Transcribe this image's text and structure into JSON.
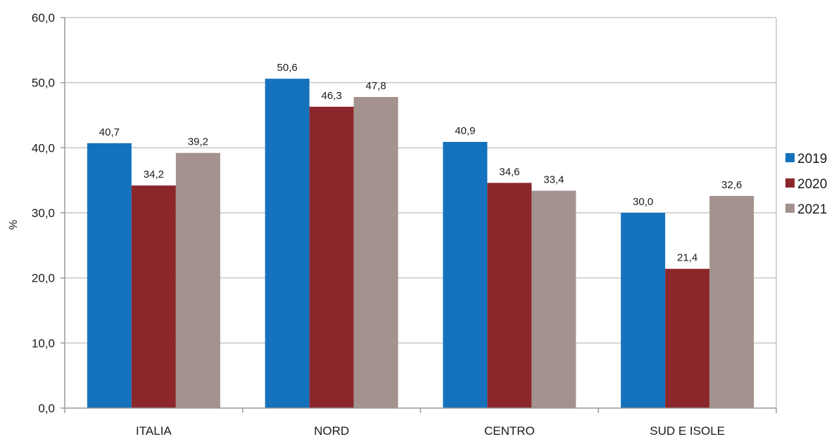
{
  "chart_data": {
    "type": "bar",
    "title": "",
    "xlabel": "",
    "ylabel": "%",
    "ylim": [
      0,
      60
    ],
    "yticks": [
      "0,0",
      "10,0",
      "20,0",
      "30,0",
      "40,0",
      "50,0",
      "60,0"
    ],
    "categories": [
      "ITALIA",
      "NORD",
      "CENTRO",
      "SUD E ISOLE"
    ],
    "series": [
      {
        "name": "2019",
        "color": "#1472bd",
        "values": [
          40.7,
          50.6,
          40.9,
          30.0
        ],
        "labels": [
          "40,7",
          "50,6",
          "40,9",
          "30,0"
        ]
      },
      {
        "name": "2020",
        "color": "#8b272b",
        "values": [
          34.2,
          46.3,
          34.6,
          21.4
        ],
        "labels": [
          "34,2",
          "46,3",
          "34,6",
          "21,4"
        ]
      },
      {
        "name": "2021",
        "color": "#a3928d",
        "values": [
          39.2,
          47.8,
          33.4,
          32.6
        ],
        "labels": [
          "39,2",
          "47,8",
          "33,4",
          "32,6"
        ]
      }
    ],
    "grid": true,
    "legend_position": "right"
  }
}
